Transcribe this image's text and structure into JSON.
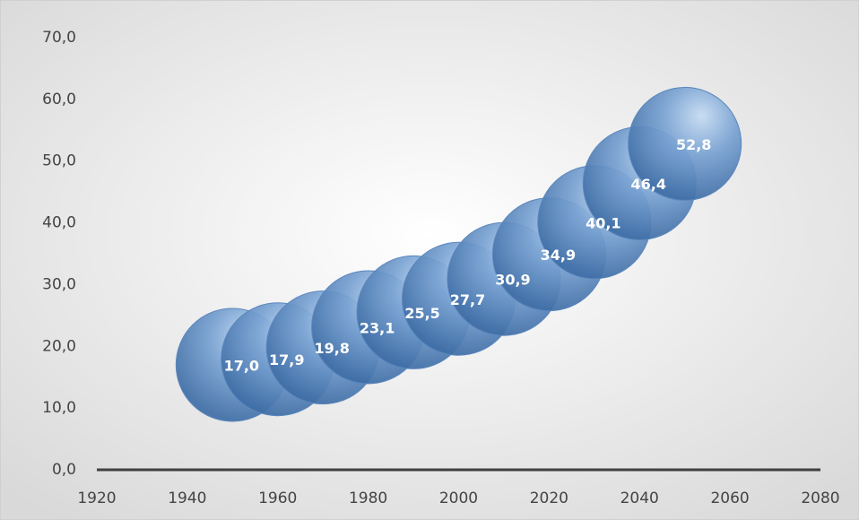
{
  "chart_data": {
    "type": "scatter",
    "x": [
      1950,
      1960,
      1970,
      1980,
      1990,
      2000,
      2010,
      2020,
      2030,
      2040,
      2050
    ],
    "values": [
      17.0,
      17.9,
      19.8,
      23.1,
      25.5,
      27.7,
      30.9,
      34.9,
      40.1,
      46.4,
      52.8
    ],
    "value_labels": [
      "17,0",
      "17,9",
      "19,8",
      "23,1",
      "25,5",
      "27,7",
      "30,9",
      "34,9",
      "40,1",
      "46,4",
      "52,8"
    ],
    "color": "#4f81bd",
    "xlim": [
      1920,
      2080
    ],
    "xticks": [
      1920,
      1940,
      1960,
      1980,
      2000,
      2020,
      2040,
      2060,
      2080
    ],
    "ylim": [
      0,
      70
    ],
    "yticks": [
      {
        "value": 0,
        "label": "0,0"
      },
      {
        "value": 10,
        "label": "10,0"
      },
      {
        "value": 20,
        "label": "20,0"
      },
      {
        "value": 30,
        "label": "30,0"
      },
      {
        "value": 40,
        "label": "40,0"
      },
      {
        "value": 50,
        "label": "50,0"
      },
      {
        "value": 60,
        "label": "60,0"
      },
      {
        "value": 70,
        "label": "70,0"
      }
    ]
  }
}
